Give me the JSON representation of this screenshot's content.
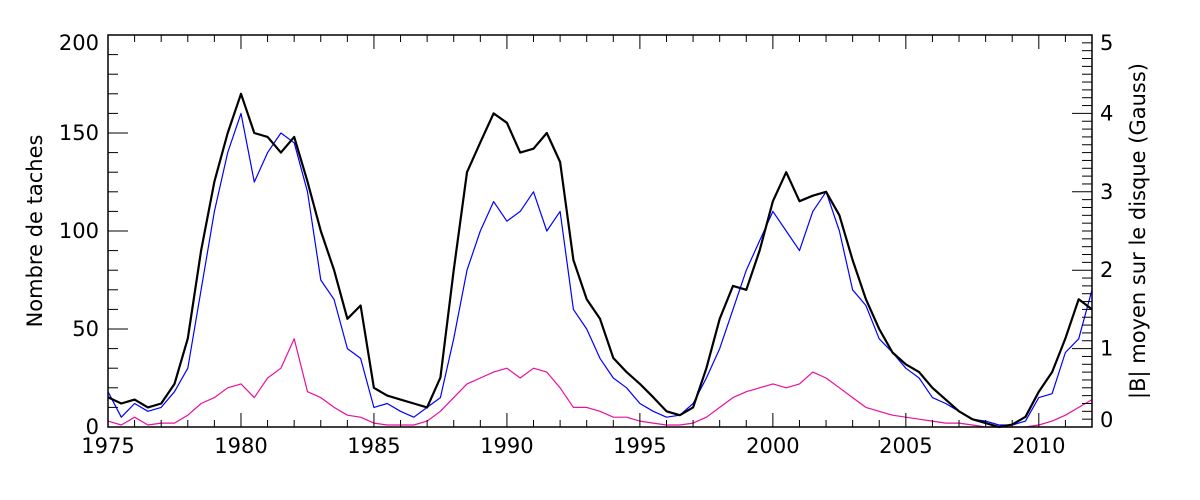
{
  "chart_data": {
    "type": "line",
    "title": "",
    "xlabel": "",
    "ylabel": "Nombre de taches",
    "ylabel_right": "|B| moyen sur le disque (Gauss)",
    "xlim": [
      1975,
      2012
    ],
    "ylim": [
      0,
      200
    ],
    "ylim_right": [
      0,
      5
    ],
    "x_ticks": [
      "1975",
      "1980",
      "1985",
      "1990",
      "1995",
      "2000",
      "2005",
      "2010"
    ],
    "y_ticks": [
      "0",
      "50",
      "100",
      "150",
      "200"
    ],
    "y_ticks_right": [
      "0",
      "1",
      "2",
      "3",
      "4",
      "5"
    ],
    "grid": false,
    "legend": "none",
    "x": [
      1975,
      1975.5,
      1976,
      1976.5,
      1977,
      1977.5,
      1978,
      1978.5,
      1979,
      1979.5,
      1980,
      1980.5,
      1981,
      1981.5,
      1982,
      1982.5,
      1983,
      1983.5,
      1984,
      1984.5,
      1985,
      1985.5,
      1986,
      1986.5,
      1987,
      1987.5,
      1988,
      1988.5,
      1989,
      1989.5,
      1990,
      1990.5,
      1991,
      1991.5,
      1992,
      1992.5,
      1993,
      1993.5,
      1994,
      1994.5,
      1995,
      1995.5,
      1996,
      1996.5,
      1997,
      1997.5,
      1998,
      1998.5,
      1999,
      1999.5,
      2000,
      2000.5,
      2001,
      2001.5,
      2002,
      2002.5,
      2003,
      2003.5,
      2004,
      2004.5,
      2005,
      2005.5,
      2006,
      2006.5,
      2007,
      2007.5,
      2008,
      2008.5,
      2009,
      2009.5,
      2010,
      2010.5,
      2011,
      2011.5,
      2012
    ],
    "series": [
      {
        "axis": "left",
        "color": "#0000ff",
        "values": [
          18,
          5,
          12,
          8,
          10,
          18,
          30,
          70,
          110,
          140,
          160,
          125,
          140,
          150,
          145,
          120,
          75,
          65,
          40,
          35,
          10,
          12,
          8,
          5,
          10,
          15,
          45,
          80,
          100,
          115,
          105,
          110,
          120,
          100,
          110,
          60,
          50,
          35,
          25,
          20,
          12,
          8,
          5,
          6,
          12,
          25,
          40,
          60,
          80,
          95,
          110,
          100,
          90,
          110,
          120,
          100,
          70,
          62,
          45,
          38,
          30,
          25,
          15,
          12,
          8,
          4,
          3,
          1,
          1,
          3,
          15,
          17,
          38,
          45,
          70
        ]
      },
      {
        "axis": "left",
        "color": "#e8109e",
        "values": [
          3,
          1,
          5,
          1,
          2,
          2,
          6,
          12,
          15,
          20,
          22,
          15,
          25,
          30,
          45,
          18,
          15,
          10,
          6,
          5,
          2,
          1,
          1,
          1,
          3,
          8,
          15,
          22,
          25,
          28,
          30,
          25,
          30,
          28,
          20,
          10,
          10,
          8,
          5,
          5,
          3,
          2,
          1,
          1,
          2,
          5,
          10,
          15,
          18,
          20,
          22,
          20,
          22,
          28,
          25,
          20,
          15,
          10,
          8,
          6,
          5,
          4,
          3,
          2,
          2,
          1,
          0,
          0,
          0,
          0,
          1,
          3,
          6,
          10,
          14
        ]
      },
      {
        "axis": "right",
        "color": "#000000",
        "values": [
          0.38,
          0.3,
          0.35,
          0.25,
          0.3,
          0.55,
          1.13,
          2.25,
          3.13,
          3.75,
          4.25,
          3.75,
          3.7,
          3.5,
          3.7,
          3.13,
          2.5,
          2.0,
          1.38,
          1.55,
          0.5,
          0.4,
          0.35,
          0.3,
          0.25,
          0.63,
          2.0,
          3.25,
          3.63,
          4.0,
          3.88,
          3.5,
          3.55,
          3.75,
          3.38,
          2.13,
          1.63,
          1.38,
          0.88,
          0.7,
          0.55,
          0.38,
          0.2,
          0.15,
          0.25,
          0.75,
          1.38,
          1.8,
          1.75,
          2.25,
          2.88,
          3.25,
          2.88,
          2.95,
          3.0,
          2.7,
          2.13,
          1.63,
          1.25,
          0.95,
          0.8,
          0.7,
          0.5,
          0.35,
          0.2,
          0.1,
          0.05,
          0.0,
          0.03,
          0.13,
          0.45,
          0.7,
          1.13,
          1.63,
          1.5
        ]
      }
    ]
  }
}
